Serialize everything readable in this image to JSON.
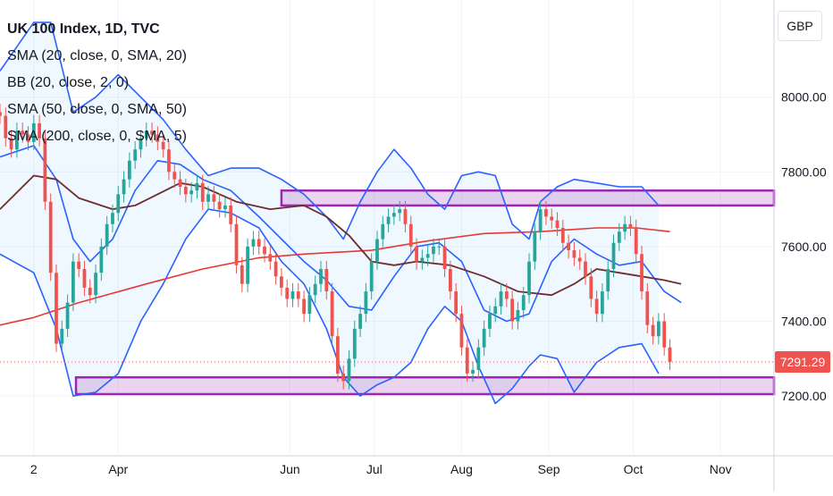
{
  "chart_data": {
    "type": "candlestick",
    "title": "UK 100 Index, 1D, TVC",
    "indicators": [
      "SMA (20, close, 0, SMA, 20)",
      "BB (20, close, 2, 0)",
      "SMA (50, close, 0, SMA, 50)",
      "SMA (200, close, 0, SMA, 5)"
    ],
    "currency": "GBP",
    "last_price": "7291.29",
    "y_ticks": [
      "8000.00",
      "7800.00",
      "7600.00",
      "7400.00",
      "7200.00"
    ],
    "y_tick_values": [
      8000,
      7800,
      7600,
      7400,
      7200
    ],
    "ylim": [
      7040,
      8260
    ],
    "x_labels": [
      {
        "label": "2",
        "day": 0
      },
      {
        "label": "Apr",
        "day": 30
      },
      {
        "label": "Jun",
        "day": 91
      },
      {
        "label": "Jul",
        "day": 121
      },
      {
        "label": "Aug",
        "day": 152
      },
      {
        "label": "Sep",
        "day": 183
      },
      {
        "label": "Oct",
        "day": 213
      },
      {
        "label": "Nov",
        "day": 244
      }
    ],
    "xlim": [
      -12,
      263
    ],
    "zones": [
      {
        "low": 7710,
        "high": 7750,
        "start_day": 88,
        "end_day": 263
      },
      {
        "low": 7205,
        "high": 7250,
        "start_day": 15,
        "end_day": 263
      }
    ],
    "closes": [
      {
        "day": -12,
        "close": 7950
      },
      {
        "day": -10,
        "close": 7890
      },
      {
        "day": -8,
        "close": 7860
      },
      {
        "day": -6,
        "close": 7910
      },
      {
        "day": -4,
        "close": 7900
      },
      {
        "day": -2,
        "close": 7880
      },
      {
        "day": 0,
        "close": 7930
      },
      {
        "day": 2,
        "close": 7890
      },
      {
        "day": 4,
        "close": 7720
      },
      {
        "day": 6,
        "close": 7530
      },
      {
        "day": 8,
        "close": 7340
      },
      {
        "day": 10,
        "close": 7380
      },
      {
        "day": 12,
        "close": 7450
      },
      {
        "day": 14,
        "close": 7560
      },
      {
        "day": 16,
        "close": 7540
      },
      {
        "day": 18,
        "close": 7490
      },
      {
        "day": 20,
        "close": 7470
      },
      {
        "day": 22,
        "close": 7530
      },
      {
        "day": 24,
        "close": 7600
      },
      {
        "day": 26,
        "close": 7660
      },
      {
        "day": 28,
        "close": 7690
      },
      {
        "day": 30,
        "close": 7740
      },
      {
        "day": 32,
        "close": 7780
      },
      {
        "day": 34,
        "close": 7830
      },
      {
        "day": 36,
        "close": 7860
      },
      {
        "day": 38,
        "close": 7890
      },
      {
        "day": 40,
        "close": 7910
      },
      {
        "day": 42,
        "close": 7900
      },
      {
        "day": 44,
        "close": 7880
      },
      {
        "day": 46,
        "close": 7860
      },
      {
        "day": 48,
        "close": 7800
      },
      {
        "day": 50,
        "close": 7780
      },
      {
        "day": 52,
        "close": 7760
      },
      {
        "day": 54,
        "close": 7740
      },
      {
        "day": 56,
        "close": 7750
      },
      {
        "day": 58,
        "close": 7770
      },
      {
        "day": 60,
        "close": 7720
      },
      {
        "day": 62,
        "close": 7740
      },
      {
        "day": 64,
        "close": 7720
      },
      {
        "day": 66,
        "close": 7700
      },
      {
        "day": 68,
        "close": 7710
      },
      {
        "day": 70,
        "close": 7660
      },
      {
        "day": 72,
        "close": 7550
      },
      {
        "day": 74,
        "close": 7500
      },
      {
        "day": 76,
        "close": 7600
      },
      {
        "day": 78,
        "close": 7620
      },
      {
        "day": 80,
        "close": 7600
      },
      {
        "day": 82,
        "close": 7580
      },
      {
        "day": 84,
        "close": 7560
      },
      {
        "day": 86,
        "close": 7520
      },
      {
        "day": 88,
        "close": 7490
      },
      {
        "day": 90,
        "close": 7460
      },
      {
        "day": 92,
        "close": 7480
      },
      {
        "day": 94,
        "close": 7460
      },
      {
        "day": 96,
        "close": 7420
      },
      {
        "day": 98,
        "close": 7470
      },
      {
        "day": 100,
        "close": 7500
      },
      {
        "day": 102,
        "close": 7540
      },
      {
        "day": 104,
        "close": 7480
      },
      {
        "day": 106,
        "close": 7360
      },
      {
        "day": 108,
        "close": 7260
      },
      {
        "day": 110,
        "close": 7240
      },
      {
        "day": 112,
        "close": 7300
      },
      {
        "day": 114,
        "close": 7380
      },
      {
        "day": 116,
        "close": 7420
      },
      {
        "day": 118,
        "close": 7480
      },
      {
        "day": 120,
        "close": 7560
      },
      {
        "day": 122,
        "close": 7620
      },
      {
        "day": 124,
        "close": 7660
      },
      {
        "day": 126,
        "close": 7680
      },
      {
        "day": 128,
        "close": 7690
      },
      {
        "day": 130,
        "close": 7700
      },
      {
        "day": 132,
        "close": 7660
      },
      {
        "day": 134,
        "close": 7600
      },
      {
        "day": 136,
        "close": 7560
      },
      {
        "day": 138,
        "close": 7570
      },
      {
        "day": 140,
        "close": 7580
      },
      {
        "day": 142,
        "close": 7600
      },
      {
        "day": 144,
        "close": 7600
      },
      {
        "day": 146,
        "close": 7540
      },
      {
        "day": 148,
        "close": 7480
      },
      {
        "day": 150,
        "close": 7420
      },
      {
        "day": 152,
        "close": 7330
      },
      {
        "day": 154,
        "close": 7260
      },
      {
        "day": 156,
        "close": 7270
      },
      {
        "day": 158,
        "close": 7330
      },
      {
        "day": 160,
        "close": 7380
      },
      {
        "day": 162,
        "close": 7420
      },
      {
        "day": 164,
        "close": 7440
      },
      {
        "day": 166,
        "close": 7480
      },
      {
        "day": 168,
        "close": 7460
      },
      {
        "day": 170,
        "close": 7400
      },
      {
        "day": 172,
        "close": 7430
      },
      {
        "day": 174,
        "close": 7470
      },
      {
        "day": 176,
        "close": 7560
      },
      {
        "day": 178,
        "close": 7640
      },
      {
        "day": 180,
        "close": 7700
      },
      {
        "day": 182,
        "close": 7680
      },
      {
        "day": 184,
        "close": 7670
      },
      {
        "day": 186,
        "close": 7650
      },
      {
        "day": 188,
        "close": 7610
      },
      {
        "day": 190,
        "close": 7590
      },
      {
        "day": 192,
        "close": 7570
      },
      {
        "day": 194,
        "close": 7560
      },
      {
        "day": 196,
        "close": 7520
      },
      {
        "day": 198,
        "close": 7460
      },
      {
        "day": 200,
        "close": 7420
      },
      {
        "day": 202,
        "close": 7480
      },
      {
        "day": 204,
        "close": 7540
      },
      {
        "day": 206,
        "close": 7610
      },
      {
        "day": 208,
        "close": 7640
      },
      {
        "day": 210,
        "close": 7660
      },
      {
        "day": 212,
        "close": 7650
      },
      {
        "day": 214,
        "close": 7580
      },
      {
        "day": 216,
        "close": 7480
      },
      {
        "day": 218,
        "close": 7390
      },
      {
        "day": 220,
        "close": 7360
      },
      {
        "day": 222,
        "close": 7400
      },
      {
        "day": 224,
        "close": 7330
      },
      {
        "day": 226,
        "close": 7291.29
      }
    ],
    "sma20": [
      [
        -12,
        7840
      ],
      [
        0,
        7870
      ],
      [
        8,
        7780
      ],
      [
        14,
        7620
      ],
      [
        20,
        7560
      ],
      [
        28,
        7620
      ],
      [
        36,
        7750
      ],
      [
        44,
        7830
      ],
      [
        52,
        7820
      ],
      [
        60,
        7780
      ],
      [
        70,
        7750
      ],
      [
        80,
        7680
      ],
      [
        88,
        7620
      ],
      [
        96,
        7560
      ],
      [
        104,
        7510
      ],
      [
        112,
        7440
      ],
      [
        120,
        7430
      ],
      [
        128,
        7520
      ],
      [
        136,
        7600
      ],
      [
        144,
        7610
      ],
      [
        152,
        7560
      ],
      [
        160,
        7430
      ],
      [
        168,
        7400
      ],
      [
        176,
        7420
      ],
      [
        184,
        7560
      ],
      [
        192,
        7620
      ],
      [
        200,
        7580
      ],
      [
        208,
        7550
      ],
      [
        216,
        7560
      ],
      [
        224,
        7480
      ],
      [
        230,
        7450
      ]
    ],
    "sma50": [
      [
        -12,
        7700
      ],
      [
        0,
        7790
      ],
      [
        8,
        7780
      ],
      [
        16,
        7730
      ],
      [
        28,
        7700
      ],
      [
        36,
        7710
      ],
      [
        44,
        7740
      ],
      [
        52,
        7770
      ],
      [
        60,
        7760
      ],
      [
        72,
        7720
      ],
      [
        84,
        7700
      ],
      [
        96,
        7710
      ],
      [
        104,
        7680
      ],
      [
        112,
        7630
      ],
      [
        120,
        7560
      ],
      [
        128,
        7550
      ],
      [
        136,
        7560
      ],
      [
        148,
        7550
      ],
      [
        160,
        7520
      ],
      [
        172,
        7480
      ],
      [
        184,
        7470
      ],
      [
        192,
        7500
      ],
      [
        200,
        7540
      ],
      [
        208,
        7530
      ],
      [
        216,
        7520
      ],
      [
        224,
        7510
      ],
      [
        230,
        7500
      ]
    ],
    "sma200": [
      [
        -12,
        7390
      ],
      [
        0,
        7410
      ],
      [
        16,
        7450
      ],
      [
        40,
        7500
      ],
      [
        60,
        7540
      ],
      [
        80,
        7570
      ],
      [
        96,
        7580
      ],
      [
        120,
        7590
      ],
      [
        140,
        7615
      ],
      [
        160,
        7635
      ],
      [
        180,
        7640
      ],
      [
        200,
        7650
      ],
      [
        214,
        7650
      ],
      [
        226,
        7640
      ]
    ],
    "bb_upper": [
      [
        -12,
        8070
      ],
      [
        0,
        8200
      ],
      [
        6,
        8200
      ],
      [
        14,
        7960
      ],
      [
        22,
        8000
      ],
      [
        30,
        8060
      ],
      [
        38,
        8000
      ],
      [
        46,
        7940
      ],
      [
        54,
        7860
      ],
      [
        62,
        7790
      ],
      [
        70,
        7810
      ],
      [
        80,
        7810
      ],
      [
        88,
        7780
      ],
      [
        96,
        7740
      ],
      [
        104,
        7680
      ],
      [
        110,
        7620
      ],
      [
        116,
        7720
      ],
      [
        122,
        7800
      ],
      [
        128,
        7860
      ],
      [
        134,
        7810
      ],
      [
        140,
        7740
      ],
      [
        146,
        7700
      ],
      [
        152,
        7790
      ],
      [
        158,
        7800
      ],
      [
        164,
        7790
      ],
      [
        170,
        7660
      ],
      [
        176,
        7620
      ],
      [
        180,
        7720
      ],
      [
        186,
        7760
      ],
      [
        192,
        7780
      ],
      [
        200,
        7770
      ],
      [
        208,
        7760
      ],
      [
        216,
        7760
      ],
      [
        222,
        7710
      ]
    ],
    "bb_lower": [
      [
        -12,
        7580
      ],
      [
        0,
        7530
      ],
      [
        8,
        7380
      ],
      [
        14,
        7200
      ],
      [
        22,
        7210
      ],
      [
        30,
        7260
      ],
      [
        38,
        7400
      ],
      [
        46,
        7500
      ],
      [
        54,
        7620
      ],
      [
        62,
        7700
      ],
      [
        70,
        7690
      ],
      [
        80,
        7650
      ],
      [
        88,
        7560
      ],
      [
        96,
        7500
      ],
      [
        104,
        7380
      ],
      [
        110,
        7250
      ],
      [
        116,
        7200
      ],
      [
        122,
        7230
      ],
      [
        128,
        7250
      ],
      [
        134,
        7290
      ],
      [
        140,
        7380
      ],
      [
        146,
        7440
      ],
      [
        152,
        7400
      ],
      [
        158,
        7280
      ],
      [
        164,
        7180
      ],
      [
        170,
        7220
      ],
      [
        176,
        7280
      ],
      [
        180,
        7310
      ],
      [
        186,
        7300
      ],
      [
        192,
        7210
      ],
      [
        200,
        7290
      ],
      [
        208,
        7330
      ],
      [
        216,
        7340
      ],
      [
        222,
        7260
      ]
    ]
  }
}
